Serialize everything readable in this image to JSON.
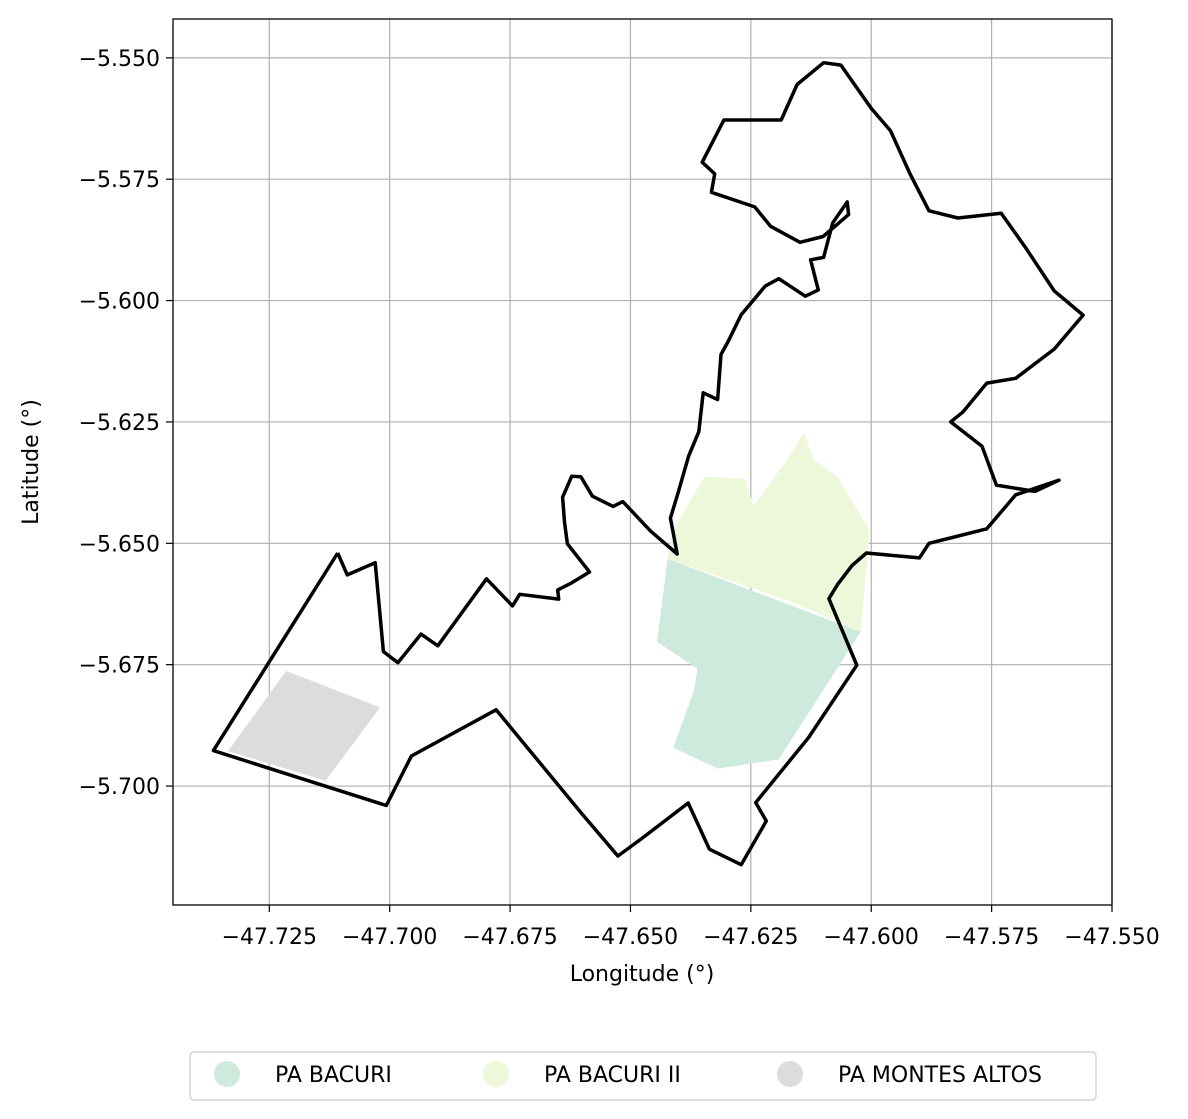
{
  "map": {
    "xlabel": "Longitude (°)",
    "ylabel": "Latitude (°)",
    "xlim": [
      -47.745,
      -47.55
    ],
    "ylim": [
      -5.7245,
      -5.542
    ],
    "grid": true,
    "x_ticks": [
      -47.725,
      -47.7,
      -47.675,
      -47.65,
      -47.625,
      -47.6,
      -47.575,
      -47.55
    ],
    "x_tick_labels": [
      "−47.725",
      "−47.700",
      "−47.675",
      "−47.650",
      "−47.625",
      "−47.600",
      "−47.575",
      "−47.550"
    ],
    "y_ticks": [
      -5.55,
      -5.575,
      -5.6,
      -5.625,
      -5.65,
      -5.675,
      -5.7
    ],
    "y_tick_labels": [
      "−5.550",
      "−5.575",
      "−5.600",
      "−5.625",
      "−5.650",
      "−5.675",
      "−5.700"
    ],
    "legend_placement": "bottom-center, below axes",
    "boundary_color": "#000000",
    "areas": [
      {
        "name": "PA BACURI",
        "color": "#cdeadd",
        "polygon": [
          [
            -47.6423,
            -5.6532
          ],
          [
            -47.6022,
            -5.6682
          ],
          [
            -47.6192,
            -5.6945
          ],
          [
            -47.6318,
            -5.6964
          ],
          [
            -47.6411,
            -5.6921
          ],
          [
            -47.6368,
            -5.6803
          ],
          [
            -47.6361,
            -5.6758
          ],
          [
            -47.6445,
            -5.6703
          ],
          [
            -47.644,
            -5.6665
          ]
        ]
      },
      {
        "name": "PA BACURI II",
        "color": "#edf8da",
        "polygon": [
          [
            -47.6423,
            -5.6532
          ],
          [
            -47.6413,
            -5.6474
          ],
          [
            -47.6346,
            -5.6363
          ],
          [
            -47.6262,
            -5.6367
          ],
          [
            -47.6245,
            -5.6423
          ],
          [
            -47.6171,
            -5.6323
          ],
          [
            -47.614,
            -5.6272
          ],
          [
            -47.6119,
            -5.6328
          ],
          [
            -47.607,
            -5.6363
          ],
          [
            -47.6003,
            -5.6474
          ],
          [
            -47.6022,
            -5.6682
          ],
          [
            -47.6169,
            -5.6619
          ]
        ]
      },
      {
        "name": "PA MONTES ALTOS",
        "color": "#dcdcdc",
        "polygon": [
          [
            -47.7336,
            -5.6928
          ],
          [
            -47.7215,
            -5.6763
          ],
          [
            -47.702,
            -5.6838
          ],
          [
            -47.7133,
            -5.6989
          ]
        ]
      }
    ],
    "boundary": [
      [
        -47.7108,
        -5.652
      ],
      [
        -47.7088,
        -5.6565
      ],
      [
        -47.703,
        -5.654
      ],
      [
        -47.7013,
        -5.6723
      ],
      [
        -47.6983,
        -5.6746
      ],
      [
        -47.6935,
        -5.6687
      ],
      [
        -47.69,
        -5.6711
      ],
      [
        -47.6799,
        -5.6573
      ],
      [
        -47.6745,
        -5.6629
      ],
      [
        -47.673,
        -5.6605
      ],
      [
        -47.6649,
        -5.6615
      ],
      [
        -47.6651,
        -5.6596
      ],
      [
        -47.6625,
        -5.6583
      ],
      [
        -47.6585,
        -5.6559
      ],
      [
        -47.6631,
        -5.6501
      ],
      [
        -47.6637,
        -5.6456
      ],
      [
        -47.6641,
        -5.6405
      ],
      [
        -47.6622,
        -5.6362
      ],
      [
        -47.6603,
        -5.6363
      ],
      [
        -47.6579,
        -5.6403
      ],
      [
        -47.6536,
        -5.6424
      ],
      [
        -47.6516,
        -5.6414
      ],
      [
        -47.6458,
        -5.6475
      ],
      [
        -47.6403,
        -5.6522
      ],
      [
        -47.6417,
        -5.6448
      ],
      [
        -47.6401,
        -5.6396
      ],
      [
        -47.6379,
        -5.632
      ],
      [
        -47.6358,
        -5.627
      ],
      [
        -47.6349,
        -5.619
      ],
      [
        -47.6319,
        -5.6204
      ],
      [
        -47.6312,
        -5.6111
      ],
      [
        -47.6296,
        -5.6082
      ],
      [
        -47.627,
        -5.6029
      ],
      [
        -47.622,
        -5.597
      ],
      [
        -47.6192,
        -5.5955
      ],
      [
        -47.6137,
        -5.5991
      ],
      [
        -47.611,
        -5.5978
      ],
      [
        -47.6126,
        -5.5916
      ],
      [
        -47.6099,
        -5.5911
      ],
      [
        -47.608,
        -5.584
      ],
      [
        -47.605,
        -5.5797
      ],
      [
        -47.6047,
        -5.5823
      ],
      [
        -47.61,
        -5.5868
      ],
      [
        -47.6148,
        -5.588
      ],
      [
        -47.6209,
        -5.5847
      ],
      [
        -47.6242,
        -5.5807
      ],
      [
        -47.6332,
        -5.5777
      ],
      [
        -47.6325,
        -5.5739
      ],
      [
        -47.6351,
        -5.5715
      ],
      [
        -47.6306,
        -5.5628
      ],
      [
        -47.6187,
        -5.5628
      ],
      [
        -47.6154,
        -5.5555
      ],
      [
        -47.6099,
        -5.551
      ],
      [
        -47.6063,
        -5.5515
      ],
      [
        -47.6,
        -5.5604
      ],
      [
        -47.596,
        -5.565
      ],
      [
        -47.592,
        -5.5738
      ],
      [
        -47.588,
        -5.5815
      ],
      [
        -47.582,
        -5.583
      ],
      [
        -47.573,
        -5.582
      ],
      [
        -47.568,
        -5.589
      ],
      [
        -47.562,
        -5.598
      ],
      [
        -47.556,
        -5.603
      ],
      [
        -47.562,
        -5.61
      ],
      [
        -47.57,
        -5.616
      ],
      [
        -47.576,
        -5.617
      ],
      [
        -47.581,
        -5.623
      ],
      [
        -47.5835,
        -5.625
      ],
      [
        -47.577,
        -5.63
      ],
      [
        -47.574,
        -5.638
      ],
      [
        -47.566,
        -5.6393
      ],
      [
        -47.561,
        -5.637
      ],
      [
        -47.57,
        -5.64
      ],
      [
        -47.576,
        -5.647
      ],
      [
        -47.584,
        -5.649
      ],
      [
        -47.588,
        -5.65
      ],
      [
        -47.59,
        -5.653
      ],
      [
        -47.601,
        -5.652
      ],
      [
        -47.604,
        -5.6546
      ],
      [
        -47.607,
        -5.6585
      ],
      [
        -47.6088,
        -5.6614
      ],
      [
        -47.603,
        -5.6751
      ],
      [
        -47.613,
        -5.69
      ],
      [
        -47.624,
        -5.7034
      ],
      [
        -47.6218,
        -5.7072
      ],
      [
        -47.627,
        -5.7162
      ],
      [
        -47.6336,
        -5.713
      ],
      [
        -47.638,
        -5.7035
      ],
      [
        -47.6478,
        -5.7109
      ],
      [
        -47.6526,
        -5.7144
      ],
      [
        -47.66,
        -5.7058
      ],
      [
        -47.6779,
        -5.6843
      ],
      [
        -47.6955,
        -5.6938
      ],
      [
        -47.7007,
        -5.704
      ],
      [
        -47.7366,
        -5.6927
      ],
      [
        -47.7108,
        -5.652
      ]
    ]
  },
  "legend": {
    "items": [
      {
        "label": "PA BACURI",
        "color": "#cdeadd"
      },
      {
        "label": "PA BACURI II",
        "color": "#edf8da"
      },
      {
        "label": "PA MONTES ALTOS",
        "color": "#dcdcdc"
      }
    ]
  }
}
